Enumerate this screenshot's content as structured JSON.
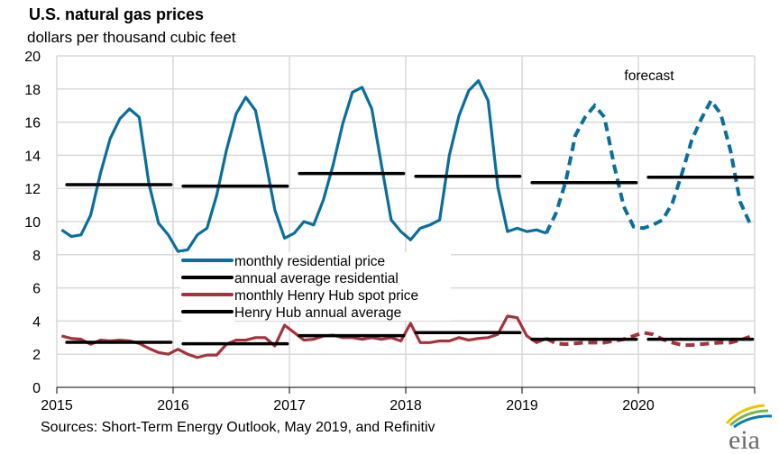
{
  "chart_data": {
    "type": "line",
    "title": "U.S. natural gas prices",
    "subtitle": "dollars per thousand  cubic feet",
    "source": "Sources: Short-Term Energy Outlook, May 2019, and Refinitiv",
    "annotation": "forecast",
    "x_start": "2015-01",
    "x_frequency": "monthly",
    "forecast_start": "2019-04",
    "xticks": [
      "2015",
      "2016",
      "2017",
      "2018",
      "2019",
      "2020"
    ],
    "yticks": [
      0,
      2,
      4,
      6,
      8,
      10,
      12,
      14,
      16,
      18,
      20
    ],
    "ylim": [
      0,
      20
    ],
    "grid": true,
    "legend_placement": "center-left",
    "colors": {
      "residential": "#0a6e9c",
      "henry_hub": "#a3333d",
      "annual": "#000000",
      "grid": "#d9d9d9"
    },
    "series": [
      {
        "name": "monthly residential price",
        "style": "line",
        "values": [
          9.5,
          9.1,
          9.2,
          10.4,
          12.9,
          15.0,
          16.2,
          16.8,
          16.3,
          12.3,
          9.9,
          9.2,
          8.2,
          8.3,
          9.2,
          9.6,
          11.6,
          14.3,
          16.5,
          17.5,
          16.7,
          13.8,
          10.7,
          9.0,
          9.3,
          10.0,
          9.8,
          11.3,
          13.4,
          15.9,
          17.8,
          18.1,
          16.8,
          13.4,
          10.1,
          9.4,
          8.9,
          9.6,
          9.8,
          10.1,
          14.0,
          16.4,
          17.9,
          18.5,
          17.3,
          12.1,
          9.4,
          9.6,
          9.4,
          9.5,
          9.3,
          10.5,
          12.4,
          15.2,
          16.3,
          17.0,
          16.3,
          13.4,
          10.9,
          9.7,
          9.6,
          9.8,
          10.1,
          11.1,
          12.9,
          14.9,
          16.2,
          17.3,
          16.5,
          14.3,
          11.2,
          9.9
        ]
      },
      {
        "name": "annual average residential",
        "style": "annual",
        "values": [
          12.23,
          12.14,
          12.9,
          12.73,
          12.35,
          12.68
        ]
      },
      {
        "name": "monthly Henry Hub spot price",
        "style": "line",
        "values": [
          3.1,
          2.95,
          2.9,
          2.6,
          2.85,
          2.8,
          2.85,
          2.8,
          2.65,
          2.35,
          2.1,
          2.0,
          2.3,
          2.0,
          1.8,
          1.95,
          1.95,
          2.6,
          2.85,
          2.85,
          3.0,
          3.0,
          2.5,
          3.75,
          3.3,
          2.85,
          2.9,
          3.1,
          3.15,
          3.0,
          3.0,
          2.9,
          3.0,
          2.9,
          3.0,
          2.8,
          3.86,
          2.7,
          2.7,
          2.8,
          2.8,
          3.0,
          2.85,
          2.95,
          3.0,
          3.2,
          4.3,
          4.2,
          3.1,
          2.7,
          2.95,
          2.65,
          2.6,
          2.65,
          2.7,
          2.7,
          2.7,
          2.8,
          2.9,
          3.1,
          3.3,
          3.2,
          2.9,
          2.7,
          2.55,
          2.55,
          2.6,
          2.65,
          2.7,
          2.7,
          2.85,
          3.05
        ]
      },
      {
        "name": "Henry Hub annual average",
        "style": "annual",
        "values": [
          2.72,
          2.63,
          3.12,
          3.3,
          2.9,
          2.9
        ]
      }
    ]
  },
  "logo": {
    "text": "eia"
  }
}
